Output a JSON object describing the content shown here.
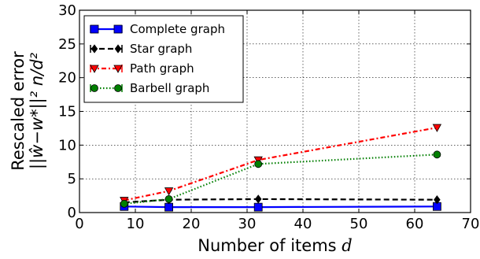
{
  "chart_data": {
    "type": "line",
    "xlabel_text": "Number of items ",
    "xlabel_var": "d",
    "ylabel_line1": "Rescaled error",
    "ylabel_line2": "||ŵ−w*||² n/d²",
    "xlim": [
      0,
      70
    ],
    "ylim": [
      0,
      30
    ],
    "xticks": [
      0,
      10,
      20,
      30,
      40,
      50,
      60,
      70
    ],
    "yticks": [
      0,
      5,
      10,
      15,
      20,
      25,
      30
    ],
    "grid": true,
    "legend_position": "top-left",
    "x": [
      8,
      16,
      32,
      64
    ],
    "series": [
      {
        "name": "Complete graph",
        "values": [
          0.9,
          0.8,
          0.8,
          0.9
        ],
        "color": "#0000ff",
        "dash": "solid",
        "marker": "square"
      },
      {
        "name": "Star graph",
        "values": [
          1.5,
          1.9,
          2.0,
          1.9
        ],
        "color": "#000000",
        "dash": "dashed",
        "marker": "diamond"
      },
      {
        "name": "Path graph",
        "values": [
          1.8,
          3.2,
          7.8,
          12.6
        ],
        "color": "#ff0000",
        "dash": "dashdot",
        "marker": "triangle-down"
      },
      {
        "name": "Barbell graph",
        "values": [
          1.3,
          2.0,
          7.2,
          8.6
        ],
        "color": "#007f00",
        "dash": "dotted",
        "marker": "circle"
      }
    ]
  }
}
